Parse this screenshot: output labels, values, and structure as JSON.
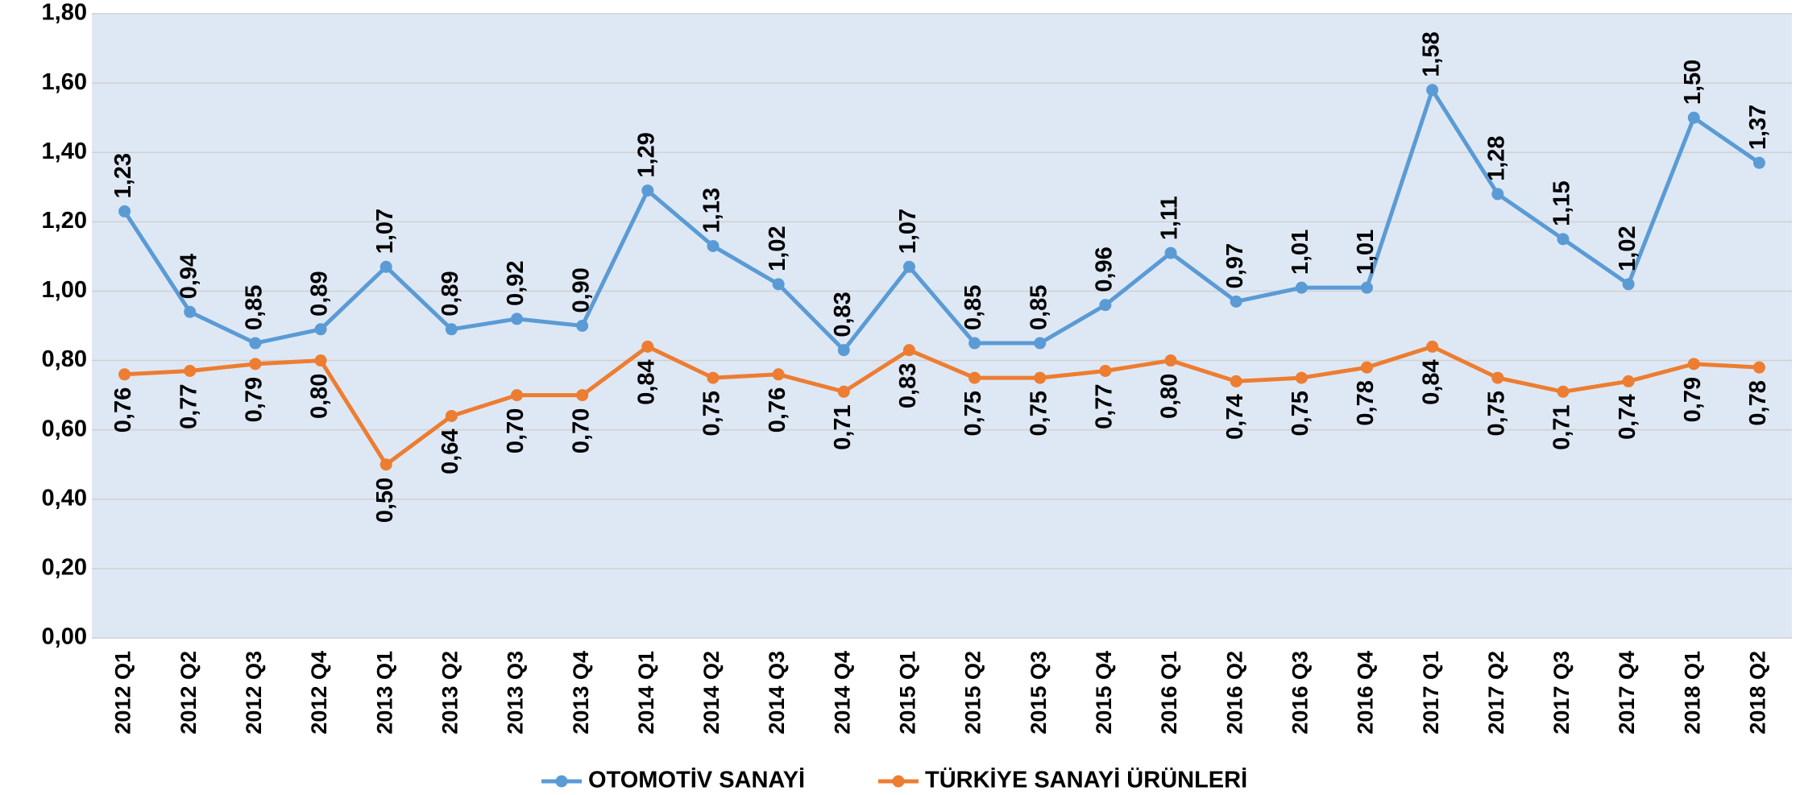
{
  "chart_data": {
    "type": "line",
    "categories": [
      "2012 Q1",
      "2012 Q2",
      "2012 Q3",
      "2012 Q4",
      "2013 Q1",
      "2013 Q2",
      "2013 Q3",
      "2013 Q4",
      "2014 Q1",
      "2014 Q2",
      "2014 Q3",
      "2014 Q4",
      "2015 Q1",
      "2015 Q2",
      "2015 Q3",
      "2015 Q4",
      "2016 Q1",
      "2016 Q2",
      "2016 Q3",
      "2016 Q4",
      "2017 Q1",
      "2017 Q2",
      "2017 Q3",
      "2017 Q4",
      "2018 Q1",
      "2018 Q2"
    ],
    "series": [
      {
        "name": "OTOMOTİV SANAYİ",
        "color": "#5b9bd5",
        "values": [
          1.23,
          0.94,
          0.85,
          0.89,
          1.07,
          0.89,
          0.92,
          0.9,
          1.29,
          1.13,
          1.02,
          0.83,
          1.07,
          0.85,
          0.85,
          0.96,
          1.11,
          0.97,
          1.01,
          1.01,
          1.58,
          1.28,
          1.15,
          1.02,
          1.5,
          1.37
        ],
        "value_labels": [
          "1,23",
          "0,94",
          "0,85",
          "0,89",
          "1,07",
          "0,89",
          "0,92",
          "0,90",
          "1,29",
          "1,13",
          "1,02",
          "0,83",
          "1,07",
          "0,85",
          "0,85",
          "0,96",
          "1,11",
          "0,97",
          "1,01",
          "1,01",
          "1,58",
          "1,28",
          "1,15",
          "1,02",
          "1,50",
          "1,37"
        ]
      },
      {
        "name": "TÜRKİYE SANAYİ ÜRÜNLERİ",
        "color": "#ed7d31",
        "values": [
          0.76,
          0.77,
          0.79,
          0.8,
          0.5,
          0.64,
          0.7,
          0.7,
          0.84,
          0.75,
          0.76,
          0.71,
          0.83,
          0.75,
          0.75,
          0.77,
          0.8,
          0.74,
          0.75,
          0.78,
          0.84,
          0.75,
          0.71,
          0.74,
          0.79,
          0.78
        ],
        "value_labels": [
          "0,76",
          "0,77",
          "0,79",
          "0,80",
          "0,50",
          "0,64",
          "0,70",
          "0,70",
          "0,84",
          "0,75",
          "0,76",
          "0,71",
          "0,83",
          "0,75",
          "0,75",
          "0,77",
          "0,80",
          "0,74",
          "0,75",
          "0,78",
          "0,84",
          "0,75",
          "0,71",
          "0,74",
          "0,79",
          "0,78"
        ]
      }
    ],
    "ylim": [
      0,
      1.8
    ],
    "yticks": [
      {
        "value": 0,
        "label": "0,00"
      },
      {
        "value": 0.2,
        "label": "0,20"
      },
      {
        "value": 0.4,
        "label": "0,40"
      },
      {
        "value": 0.6,
        "label": "0,60"
      },
      {
        "value": 0.8,
        "label": "0,80"
      },
      {
        "value": 1.0,
        "label": "1,00"
      },
      {
        "value": 1.2,
        "label": "1,20"
      },
      {
        "value": 1.4,
        "label": "1,40"
      },
      {
        "value": 1.6,
        "label": "1,60"
      },
      {
        "value": 1.8,
        "label": "1,80"
      }
    ],
    "grid": true,
    "legend": "bottom"
  }
}
